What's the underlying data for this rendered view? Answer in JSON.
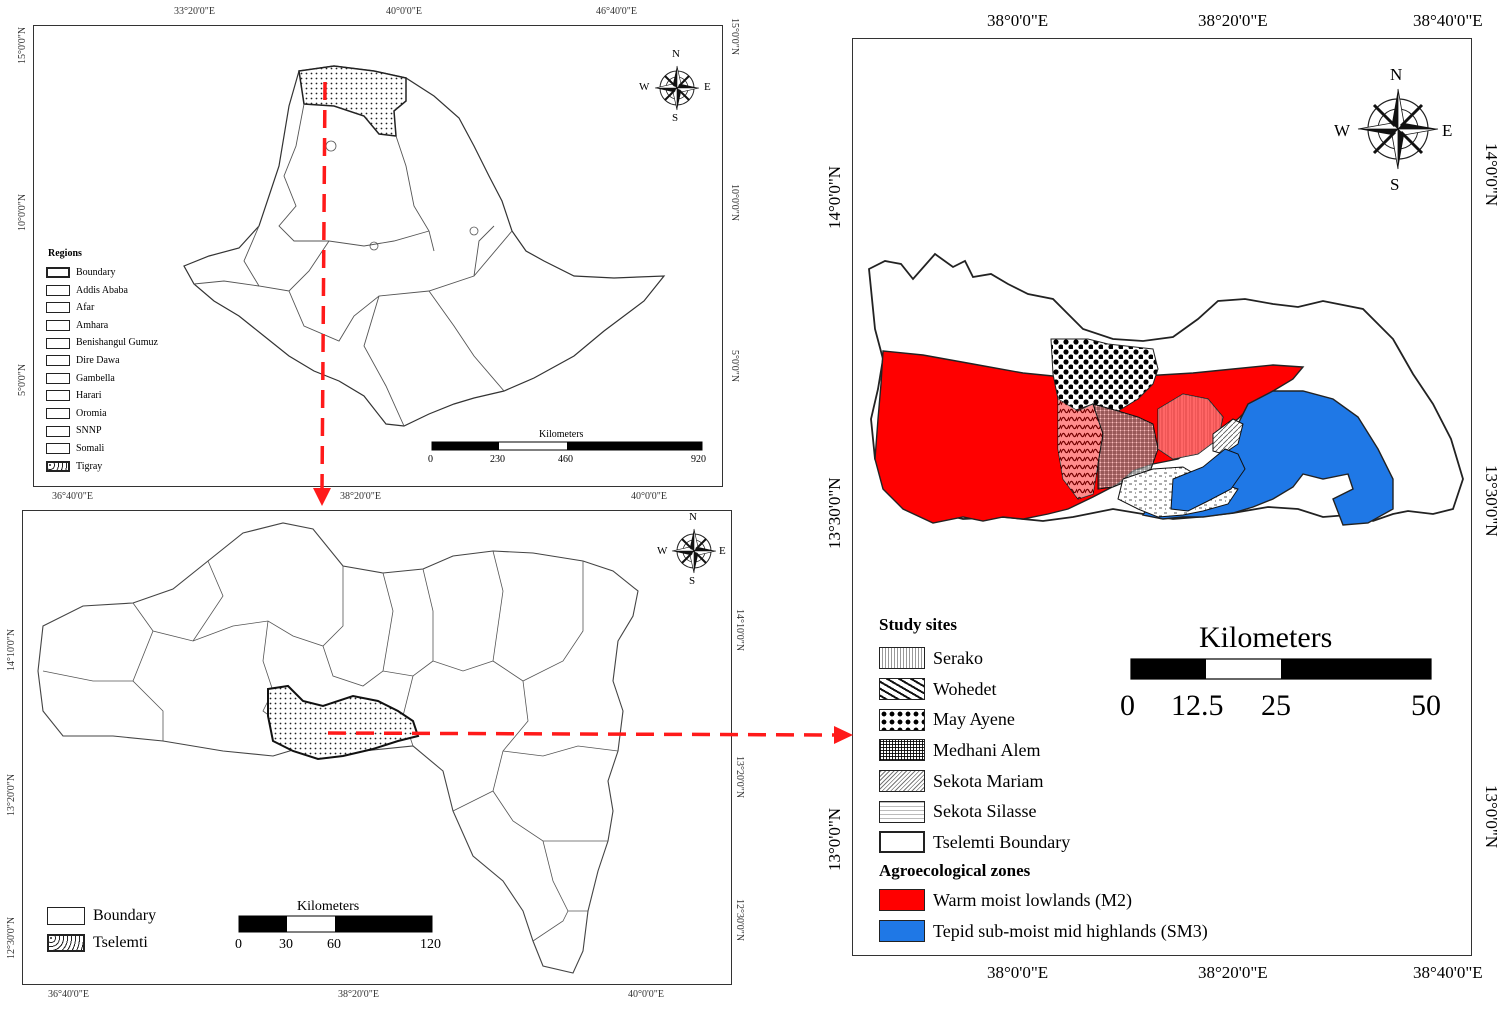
{
  "panel_a": {
    "top_ticks": [
      "33°20'0\"E",
      "40°0'0\"E",
      "46°40'0\"E"
    ],
    "bottom_ticks": [
      "36°40'0\"E",
      "38°20'0\"E",
      "40°0'0\"E"
    ],
    "left_ticks": [
      "15°0'0\"N",
      "10°0'0\"N",
      "5°0'0\"N"
    ],
    "right_ticks": [
      "15°0'0\"N",
      "10°0'0\"N",
      "5°0'0\"N"
    ],
    "legend_title": "Regions",
    "legend_items": [
      "Boundary",
      "Addis Ababa",
      "Afar",
      "Amhara",
      "Benishangul Gumuz",
      "Dire Dawa",
      "Gambella",
      "Harari",
      "Oromia",
      "SNNP",
      "Somali",
      "Tigray"
    ],
    "scale_title": "Kilometers",
    "scale_labels": [
      "0",
      "230",
      "460",
      "920"
    ],
    "compass": {
      "n": "N",
      "s": "S",
      "e": "E",
      "w": "W"
    }
  },
  "panel_b": {
    "bottom_ticks": [
      "36°40'0\"E",
      "38°20'0\"E",
      "40°0'0\"E"
    ],
    "left_ticks": [
      "14°10'0\"N",
      "13°20'0\"N",
      "12°30'0\"N"
    ],
    "right_ticks": [
      "14°10'0\"N",
      "13°20'0\"N",
      "12°30'0\"N"
    ],
    "legend_items": [
      "Boundary",
      "Tselemti"
    ],
    "scale_title": "Kilometers",
    "scale_labels": [
      "0",
      "30",
      "60",
      "120"
    ],
    "compass": {
      "n": "N",
      "s": "S",
      "e": "E",
      "w": "W"
    }
  },
  "panel_c": {
    "top_ticks": [
      "38°0'0\"E",
      "38°20'0\"E",
      "38°40'0\"E"
    ],
    "bottom_ticks": [
      "38°0'0\"E",
      "38°20'0\"E",
      "38°40'0\"E"
    ],
    "left_ticks": [
      "14°0'0\"N",
      "13°30'0\"N",
      "13°0'0\"N"
    ],
    "right_ticks": [
      "14°0'0\"N",
      "13°30'0\"N",
      "13°0'0\"N"
    ],
    "compass": {
      "n": "N",
      "s": "S",
      "e": "E",
      "w": "W"
    },
    "scale_title": "Kilometers",
    "scale_labels": [
      "0",
      "12.5",
      "25",
      "50"
    ],
    "study_sites_title": "Study sites",
    "study_sites": [
      "Serako",
      "Wohedet",
      "May Ayene",
      "Medhani Alem",
      "Sekota Mariam",
      "Sekota Silasse",
      "Tselemti Boundary"
    ],
    "zones_title": "Agroecological zones",
    "zones": [
      "Warm moist lowlands (M2)",
      "Tepid  sub-moist mid highlands (SM3)"
    ]
  },
  "colors": {
    "warm_moist_lowlands": "#ff0000",
    "tepid_submoist": "#1f78e6",
    "arrow": "#ff1a1a"
  }
}
